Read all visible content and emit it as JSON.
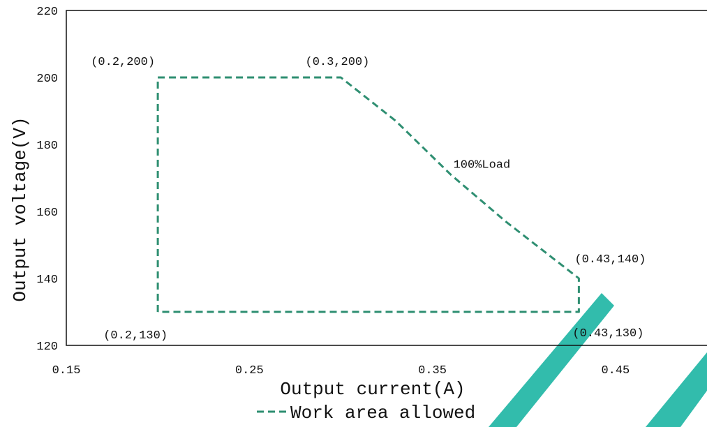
{
  "chart_data": {
    "type": "line",
    "title": "",
    "xlabel": "Output current(A)",
    "ylabel": "Output voltage(V)",
    "xlim": [
      0.15,
      0.5
    ],
    "ylim": [
      120,
      220
    ],
    "x_ticks": [
      {
        "value": 0.15,
        "label": "0.15"
      },
      {
        "value": 0.25,
        "label": "0.25"
      },
      {
        "value": 0.35,
        "label": "0.35"
      },
      {
        "value": 0.45,
        "label": "0.45"
      }
    ],
    "y_ticks": [
      {
        "value": 120,
        "label": "120"
      },
      {
        "value": 140,
        "label": "140"
      },
      {
        "value": 160,
        "label": "160"
      },
      {
        "value": 180,
        "label": "180"
      },
      {
        "value": 200,
        "label": "200"
      },
      {
        "value": 220,
        "label": "220"
      }
    ],
    "grid": false,
    "legend_position": "bottom",
    "series": [
      {
        "name": "Work area allowed",
        "color": "#2f8f72",
        "style": "dashed",
        "points": [
          [
            0.2,
            130
          ],
          [
            0.2,
            200
          ],
          [
            0.3,
            200
          ],
          [
            0.33,
            187
          ],
          [
            0.36,
            171
          ],
          [
            0.39,
            157
          ],
          [
            0.43,
            140
          ],
          [
            0.43,
            130
          ],
          [
            0.2,
            130
          ]
        ]
      }
    ],
    "annotations": [
      {
        "text": "(0.2,200)",
        "x": 0.2,
        "y": 200,
        "anchor": "above-left"
      },
      {
        "text": "(0.3,200)",
        "x": 0.3,
        "y": 200,
        "anchor": "above"
      },
      {
        "text": "100%Load",
        "x": 0.35,
        "y": 172,
        "anchor": "right"
      },
      {
        "text": "(0.43,140)",
        "x": 0.43,
        "y": 140,
        "anchor": "above"
      },
      {
        "text": "(0.2,130)",
        "x": 0.2,
        "y": 130,
        "anchor": "below"
      },
      {
        "text": "(0.43,130)",
        "x": 0.43,
        "y": 130,
        "anchor": "below"
      }
    ],
    "accent_color": "#27b8a8"
  }
}
